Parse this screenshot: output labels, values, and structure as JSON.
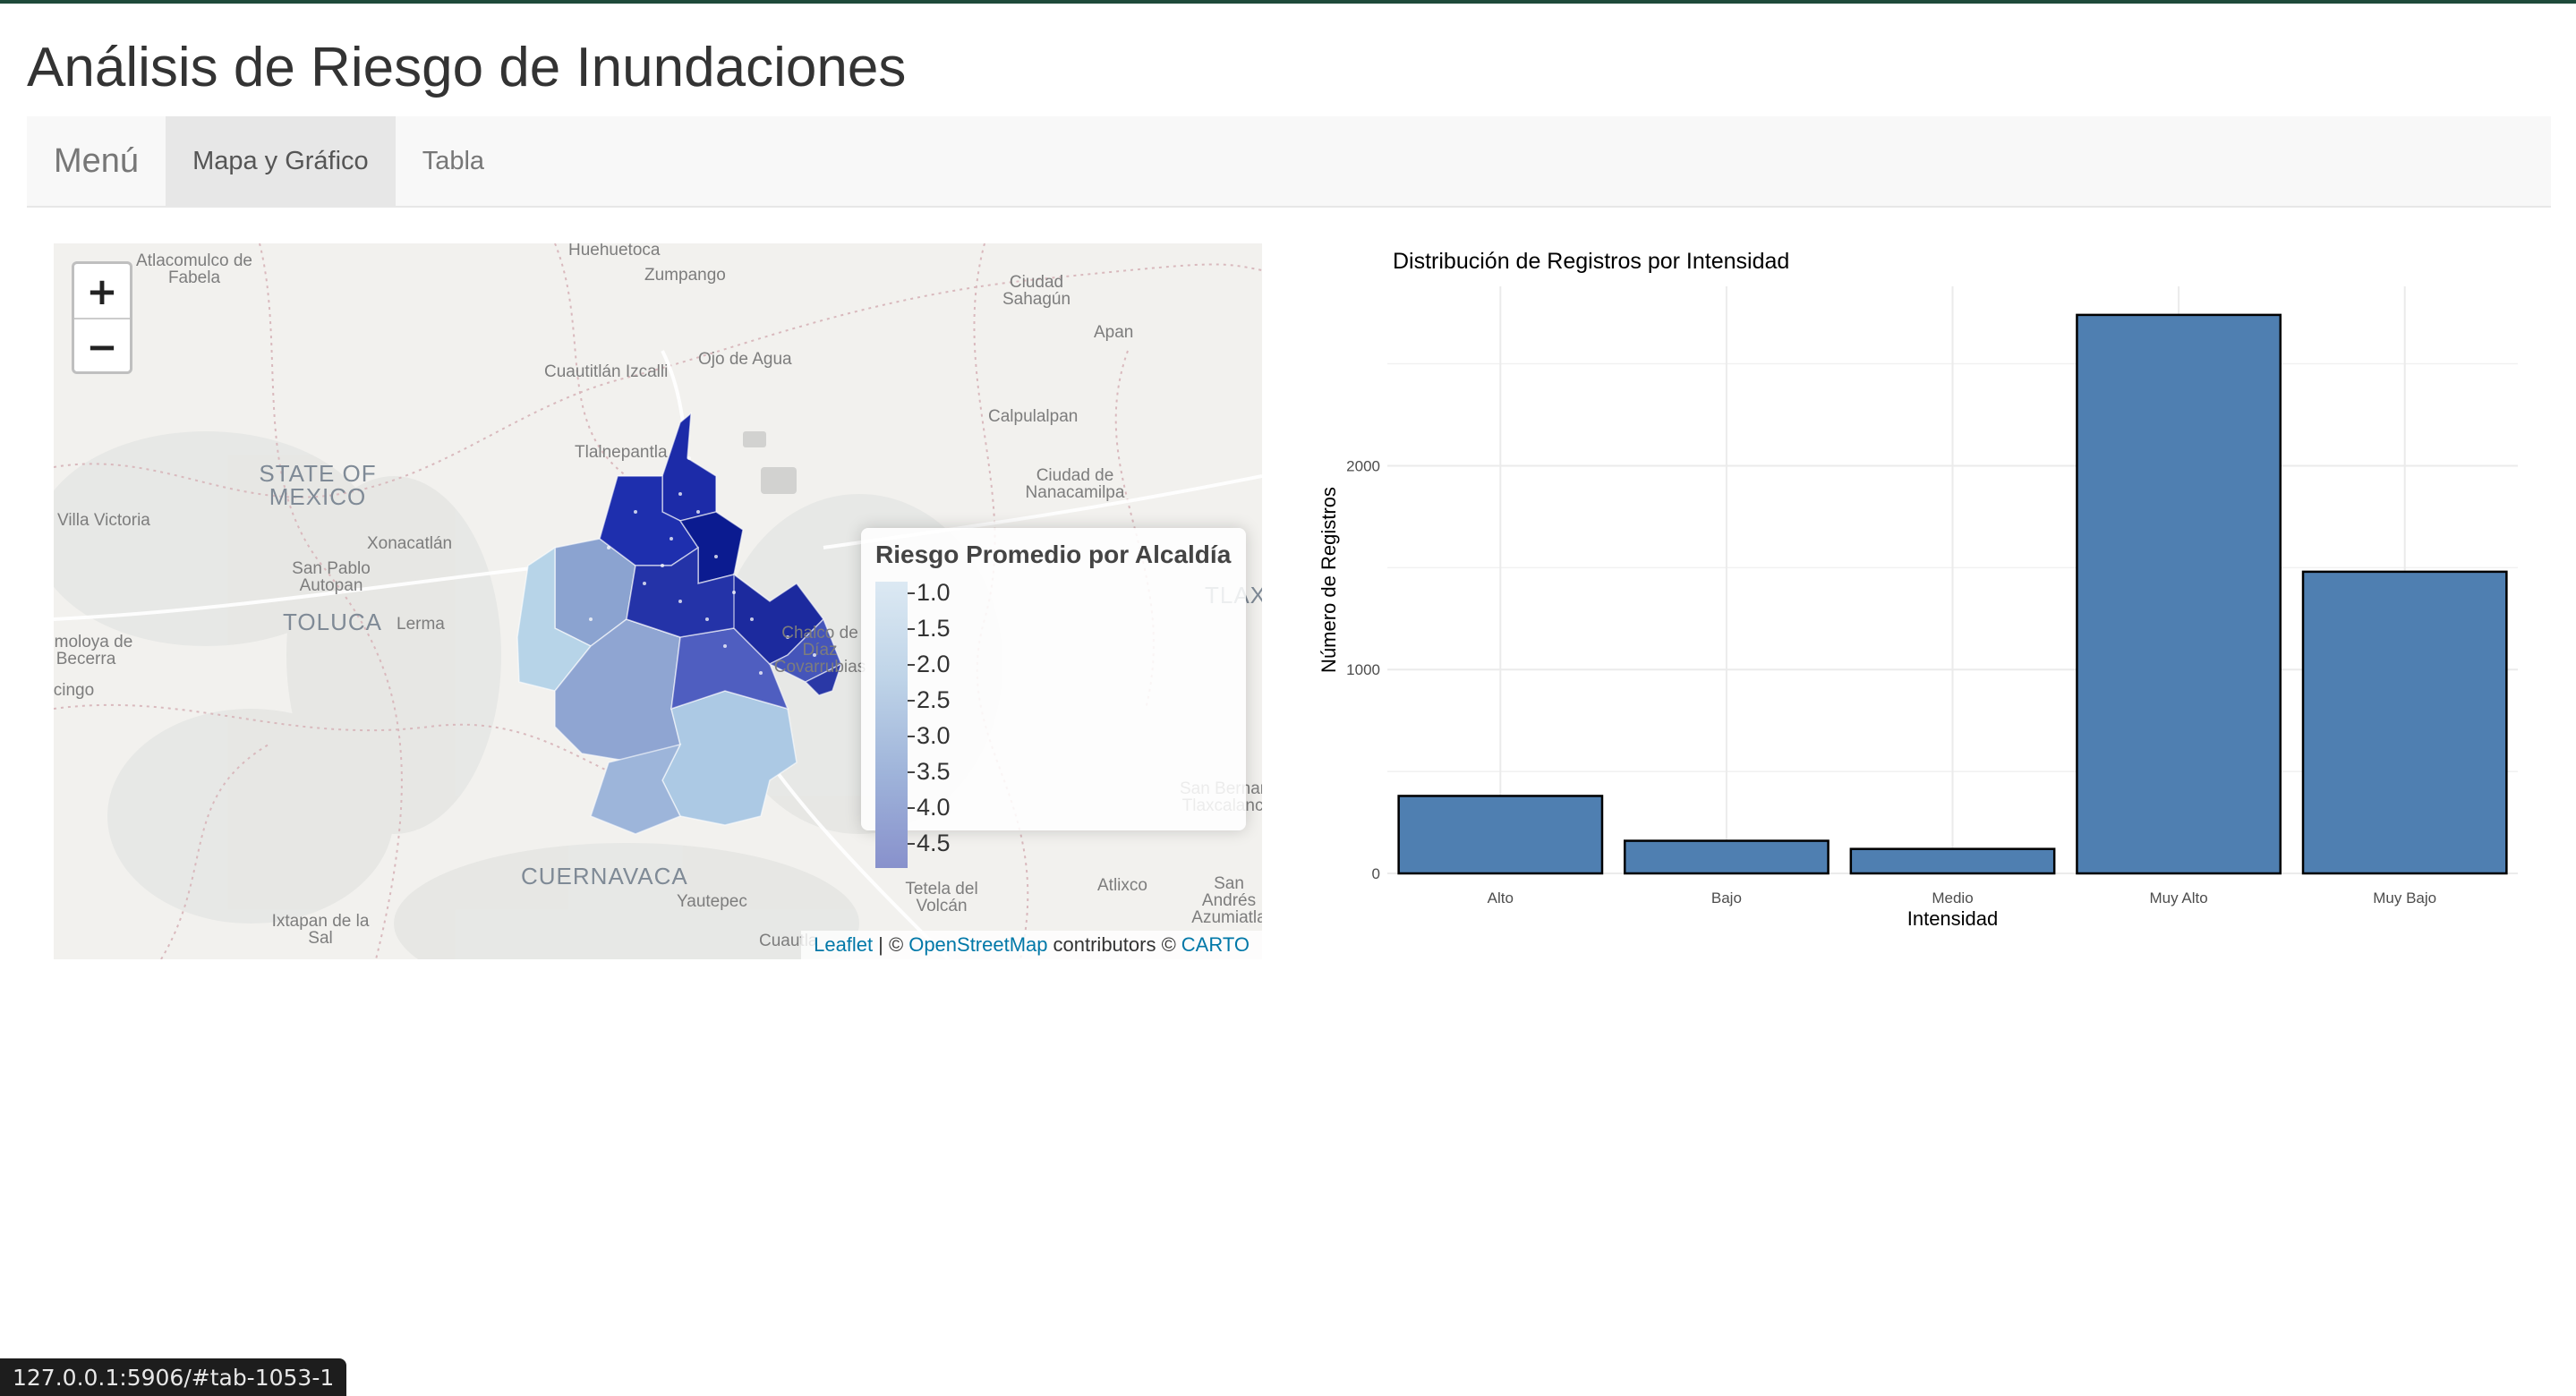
{
  "page": {
    "title": "Análisis de Riesgo de Inundaciones"
  },
  "navbar": {
    "brand": "Menú",
    "tabs": [
      {
        "label": "Mapa y Gráfico",
        "active": true
      },
      {
        "label": "Tabla",
        "active": false
      }
    ]
  },
  "map": {
    "zoom_in": "+",
    "zoom_out": "−",
    "places": [
      "Huehuetoca",
      "Atlacomulco de Fabela",
      "Zumpango",
      "Ciudad Sahagún",
      "Apan",
      "Cuautitlán Izcalli",
      "Ojo de Agua",
      "Calpulalpan",
      "Tlalnepantla",
      "STATE OF MEXICO",
      "Ciudad de Nanacamilpa",
      "Villa Victoria",
      "Xonacatlán",
      "San Pablo Autopan",
      "TOLUCA",
      "Lerma",
      "Almoloya de Becerra",
      "Tenancingo",
      "CUERNAVACA",
      "Yautepec",
      "Ixtapan de la Sal",
      "Atlixco",
      "Tetela del Volcán",
      "San Bernardino Tlaxcalancingo",
      "San Andrés Azumiatla",
      "Cuautla",
      "TLAXCALA",
      "Chalco de Díaz Covarrubias"
    ],
    "legend": {
      "title": "Riesgo Promedio por Alcaldía",
      "labels": [
        "1.0",
        "1.5",
        "2.0",
        "2.5",
        "3.0",
        "3.5",
        "4.0",
        "4.5"
      ]
    },
    "attribution": {
      "leaflet": "Leaflet",
      "sep": "| ©",
      "osm": "OpenStreetMap",
      "contributors": "contributors ©",
      "carto": "CARTO"
    },
    "colors": {
      "low": "#c2d8ea",
      "mid": "#8b9bcd",
      "high": "#0a1a8c"
    }
  },
  "chart_data": {
    "type": "bar",
    "title": "Distribución de Registros por Intensidad",
    "xlabel": "Intensidad",
    "ylabel": "Número de Registros",
    "categories": [
      "Alto",
      "Bajo",
      "Medio",
      "Muy Alto",
      "Muy Bajo"
    ],
    "values": [
      380,
      160,
      120,
      2740,
      1480
    ],
    "ylim": [
      0,
      2880
    ],
    "yticks": [
      0,
      1000,
      2000
    ],
    "bar_color": "#4f7fb1",
    "grid": true
  },
  "statusbar": {
    "url": "127.0.0.1:5906/#tab-1053-1"
  }
}
